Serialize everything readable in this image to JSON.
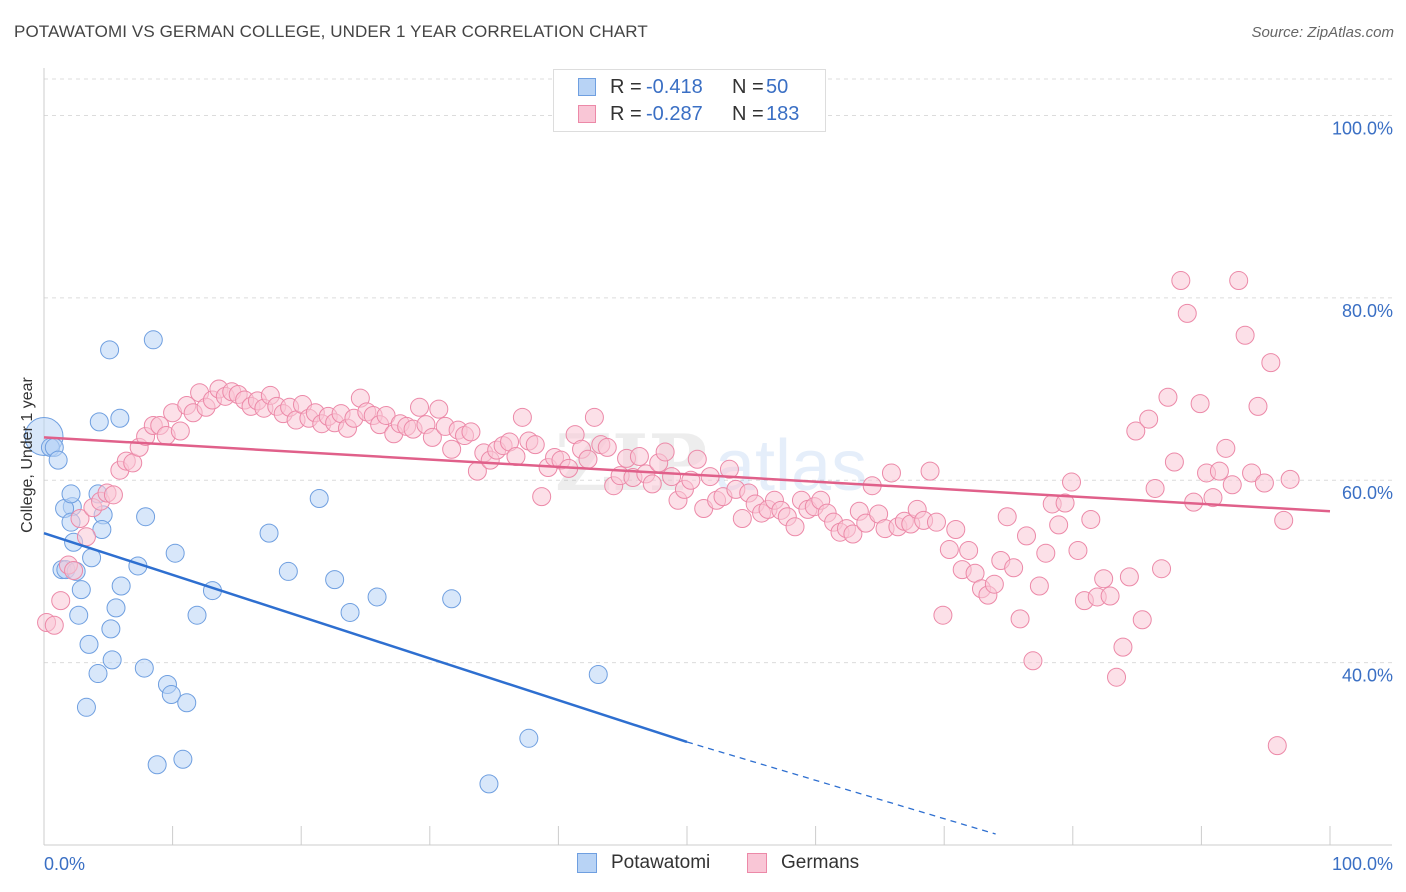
{
  "header": {
    "title": "POTAWATOMI VS GERMAN COLLEGE, UNDER 1 YEAR CORRELATION CHART",
    "source": "Source: ZipAtlas.com"
  },
  "legend": {
    "r_label": "R =",
    "n_label": "N =",
    "series": [
      {
        "name": "Potawatomi",
        "r": "-0.418",
        "n": "50",
        "fill": "#b8d3f5",
        "stroke": "#6f9fe0"
      },
      {
        "name": "Germans",
        "r": "-0.287",
        "n": "183",
        "fill": "#f9c6d6",
        "stroke": "#ec89a8"
      }
    ]
  },
  "watermark": {
    "zip": "ZIP",
    "atlas": "atlas"
  },
  "chart_data": {
    "type": "scatter",
    "title": "POTAWATOMI VS GERMAN COLLEGE, UNDER 1 YEAR CORRELATION CHART",
    "xlabel": "",
    "ylabel": "College, Under 1 year",
    "xlim": [
      0,
      100
    ],
    "ylim": [
      20,
      104
    ],
    "x_tick_labels": [
      "0.0%",
      "100.0%"
    ],
    "y_ticks": [
      40,
      60,
      80,
      100
    ],
    "y_tick_labels": [
      "40.0%",
      "60.0%",
      "80.0%",
      "100.0%"
    ],
    "grid": true,
    "series": [
      {
        "name": "Potawatomi",
        "color": "#6f9fe0",
        "fill": "#b8d3f5",
        "line_color": "#2e6fd0",
        "trend": {
          "x1": 0,
          "y1": 54.2,
          "x2": 50,
          "y2": 31.3,
          "dash_to_x": 74,
          "dash_to_y": 21.2
        },
        "points": [
          [
            0,
            64.8
          ],
          [
            0.5,
            63.6
          ],
          [
            0.8,
            63.6
          ],
          [
            1.1,
            62.2
          ],
          [
            2.2,
            57.1
          ],
          [
            1.6,
            56.9
          ],
          [
            2.1,
            55.4
          ],
          [
            4.6,
            56.2
          ],
          [
            2.3,
            53.2
          ],
          [
            4.5,
            54.6
          ],
          [
            2.1,
            58.5
          ],
          [
            4.2,
            58.5
          ],
          [
            3.7,
            51.5
          ],
          [
            1.4,
            50.2
          ],
          [
            1.7,
            50.2
          ],
          [
            2.5,
            50.0
          ],
          [
            7.3,
            50.6
          ],
          [
            2.9,
            48.0
          ],
          [
            6.0,
            48.4
          ],
          [
            5.6,
            46.0
          ],
          [
            2.7,
            45.2
          ],
          [
            5.2,
            43.7
          ],
          [
            3.5,
            42.0
          ],
          [
            5.3,
            40.3
          ],
          [
            4.2,
            38.8
          ],
          [
            7.8,
            39.4
          ],
          [
            3.3,
            35.1
          ],
          [
            9.6,
            37.6
          ],
          [
            9.9,
            36.5
          ],
          [
            11.1,
            35.6
          ],
          [
            8.8,
            28.8
          ],
          [
            10.8,
            29.4
          ],
          [
            5.1,
            74.3
          ],
          [
            8.5,
            75.4
          ],
          [
            4.3,
            66.4
          ],
          [
            5.9,
            66.8
          ],
          [
            7.9,
            56.0
          ],
          [
            10.2,
            52.0
          ],
          [
            13.1,
            47.9
          ],
          [
            11.9,
            45.2
          ],
          [
            17.5,
            54.2
          ],
          [
            19.0,
            50.0
          ],
          [
            21.4,
            58.0
          ],
          [
            22.6,
            49.1
          ],
          [
            23.8,
            45.5
          ],
          [
            25.9,
            47.2
          ],
          [
            31.7,
            47.0
          ],
          [
            43.1,
            38.7
          ],
          [
            37.7,
            31.7
          ],
          [
            34.6,
            26.7
          ]
        ]
      },
      {
        "name": "Germans",
        "color": "#ec89a8",
        "fill": "#f9c6d6",
        "line_color": "#e0608a",
        "trend": {
          "x1": 0,
          "y1": 64.7,
          "x2": 100,
          "y2": 56.6
        },
        "points": [
          [
            0.2,
            44.4
          ],
          [
            0.8,
            44.1
          ],
          [
            1.3,
            46.8
          ],
          [
            1.9,
            50.7
          ],
          [
            2.3,
            50.1
          ],
          [
            2.8,
            55.8
          ],
          [
            3.3,
            53.8
          ],
          [
            3.8,
            57.0
          ],
          [
            4.4,
            57.7
          ],
          [
            4.9,
            58.6
          ],
          [
            5.4,
            58.4
          ],
          [
            5.9,
            61.1
          ],
          [
            6.4,
            62.1
          ],
          [
            6.9,
            61.9
          ],
          [
            7.4,
            63.6
          ],
          [
            7.9,
            64.8
          ],
          [
            8.5,
            66.0
          ],
          [
            9.0,
            66.0
          ],
          [
            9.5,
            64.9
          ],
          [
            10.0,
            67.4
          ],
          [
            10.6,
            65.4
          ],
          [
            11.1,
            68.2
          ],
          [
            11.6,
            67.4
          ],
          [
            12.1,
            69.6
          ],
          [
            12.6,
            68.0
          ],
          [
            13.1,
            68.8
          ],
          [
            13.6,
            70.0
          ],
          [
            14.1,
            69.2
          ],
          [
            14.6,
            69.7
          ],
          [
            15.1,
            69.4
          ],
          [
            15.6,
            68.8
          ],
          [
            16.1,
            68.1
          ],
          [
            16.6,
            68.7
          ],
          [
            17.1,
            67.9
          ],
          [
            17.6,
            69.3
          ],
          [
            18.1,
            68.1
          ],
          [
            18.6,
            67.3
          ],
          [
            19.1,
            68.0
          ],
          [
            19.6,
            66.6
          ],
          [
            20.1,
            68.3
          ],
          [
            20.6,
            66.8
          ],
          [
            21.1,
            67.4
          ],
          [
            21.6,
            66.2
          ],
          [
            22.1,
            67.0
          ],
          [
            22.6,
            66.3
          ],
          [
            23.1,
            67.3
          ],
          [
            23.6,
            65.7
          ],
          [
            24.1,
            66.8
          ],
          [
            24.6,
            69.0
          ],
          [
            25.1,
            67.5
          ],
          [
            25.6,
            67.1
          ],
          [
            26.1,
            66.1
          ],
          [
            26.6,
            67.1
          ],
          [
            27.2,
            65.1
          ],
          [
            27.7,
            66.2
          ],
          [
            28.2,
            65.9
          ],
          [
            28.7,
            65.6
          ],
          [
            29.2,
            68.0
          ],
          [
            29.7,
            66.1
          ],
          [
            30.2,
            64.7
          ],
          [
            30.7,
            67.8
          ],
          [
            31.2,
            65.9
          ],
          [
            31.7,
            63.4
          ],
          [
            32.2,
            65.5
          ],
          [
            32.7,
            64.9
          ],
          [
            33.2,
            65.3
          ],
          [
            33.7,
            61.0
          ],
          [
            34.2,
            63.0
          ],
          [
            34.7,
            62.2
          ],
          [
            35.2,
            63.3
          ],
          [
            35.7,
            63.8
          ],
          [
            36.2,
            64.2
          ],
          [
            36.7,
            62.6
          ],
          [
            37.2,
            66.9
          ],
          [
            37.7,
            64.3
          ],
          [
            38.2,
            63.9
          ],
          [
            38.7,
            58.2
          ],
          [
            39.2,
            61.4
          ],
          [
            39.7,
            62.5
          ],
          [
            40.2,
            62.2
          ],
          [
            40.8,
            61.3
          ],
          [
            41.3,
            65.0
          ],
          [
            41.8,
            63.4
          ],
          [
            42.3,
            62.3
          ],
          [
            42.8,
            66.9
          ],
          [
            43.3,
            63.9
          ],
          [
            43.8,
            63.6
          ],
          [
            44.3,
            59.4
          ],
          [
            44.8,
            60.5
          ],
          [
            45.3,
            62.4
          ],
          [
            45.8,
            60.3
          ],
          [
            46.3,
            62.6
          ],
          [
            46.8,
            60.7
          ],
          [
            47.3,
            59.6
          ],
          [
            47.8,
            61.9
          ],
          [
            48.3,
            63.1
          ],
          [
            48.8,
            60.4
          ],
          [
            49.3,
            57.8
          ],
          [
            49.8,
            59.0
          ],
          [
            50.3,
            60.0
          ],
          [
            50.8,
            62.3
          ],
          [
            51.3,
            56.9
          ],
          [
            51.8,
            60.4
          ],
          [
            52.3,
            57.8
          ],
          [
            52.8,
            58.2
          ],
          [
            53.3,
            61.2
          ],
          [
            53.8,
            59.0
          ],
          [
            54.3,
            55.8
          ],
          [
            54.8,
            58.6
          ],
          [
            55.3,
            57.4
          ],
          [
            55.8,
            56.4
          ],
          [
            56.3,
            56.8
          ],
          [
            56.8,
            57.8
          ],
          [
            57.3,
            56.7
          ],
          [
            57.8,
            56.0
          ],
          [
            58.4,
            54.9
          ],
          [
            58.9,
            57.8
          ],
          [
            59.4,
            56.8
          ],
          [
            59.9,
            57.1
          ],
          [
            60.4,
            57.8
          ],
          [
            60.9,
            56.4
          ],
          [
            61.4,
            55.4
          ],
          [
            61.9,
            54.3
          ],
          [
            62.4,
            54.7
          ],
          [
            62.9,
            54.1
          ],
          [
            63.4,
            56.6
          ],
          [
            63.9,
            55.3
          ],
          [
            64.4,
            59.4
          ],
          [
            64.9,
            56.3
          ],
          [
            65.4,
            54.7
          ],
          [
            65.9,
            60.8
          ],
          [
            66.4,
            54.9
          ],
          [
            66.9,
            55.5
          ],
          [
            67.4,
            55.2
          ],
          [
            67.9,
            56.8
          ],
          [
            68.4,
            55.6
          ],
          [
            68.9,
            61.0
          ],
          [
            69.4,
            55.4
          ],
          [
            69.9,
            45.2
          ],
          [
            70.4,
            52.4
          ],
          [
            70.9,
            54.6
          ],
          [
            71.4,
            50.2
          ],
          [
            71.9,
            52.3
          ],
          [
            72.4,
            49.8
          ],
          [
            72.9,
            48.1
          ],
          [
            73.4,
            47.4
          ],
          [
            73.9,
            48.6
          ],
          [
            74.4,
            51.2
          ],
          [
            74.9,
            56.0
          ],
          [
            75.4,
            50.4
          ],
          [
            75.9,
            44.8
          ],
          [
            76.4,
            53.9
          ],
          [
            76.9,
            40.2
          ],
          [
            77.4,
            48.4
          ],
          [
            77.9,
            52.0
          ],
          [
            78.4,
            57.4
          ],
          [
            78.9,
            55.1
          ],
          [
            79.4,
            57.5
          ],
          [
            79.9,
            59.8
          ],
          [
            80.4,
            52.3
          ],
          [
            80.9,
            46.8
          ],
          [
            81.4,
            55.7
          ],
          [
            81.9,
            47.2
          ],
          [
            82.4,
            49.2
          ],
          [
            82.9,
            47.3
          ],
          [
            83.4,
            38.4
          ],
          [
            83.9,
            41.7
          ],
          [
            84.4,
            49.4
          ],
          [
            84.9,
            65.4
          ],
          [
            85.4,
            44.7
          ],
          [
            85.9,
            66.7
          ],
          [
            86.4,
            59.1
          ],
          [
            86.9,
            50.3
          ],
          [
            87.4,
            69.1
          ],
          [
            87.9,
            62.0
          ],
          [
            88.4,
            81.9
          ],
          [
            88.9,
            78.3
          ],
          [
            89.4,
            57.6
          ],
          [
            89.9,
            68.4
          ],
          [
            90.4,
            60.8
          ],
          [
            90.9,
            58.1
          ],
          [
            91.4,
            61.0
          ],
          [
            91.9,
            63.5
          ],
          [
            92.4,
            59.5
          ],
          [
            92.9,
            81.9
          ],
          [
            93.4,
            75.9
          ],
          [
            93.9,
            60.8
          ],
          [
            94.4,
            68.1
          ],
          [
            94.9,
            59.7
          ],
          [
            95.4,
            72.9
          ],
          [
            95.9,
            30.9
          ],
          [
            96.4,
            55.6
          ],
          [
            96.9,
            60.1
          ]
        ]
      }
    ]
  }
}
